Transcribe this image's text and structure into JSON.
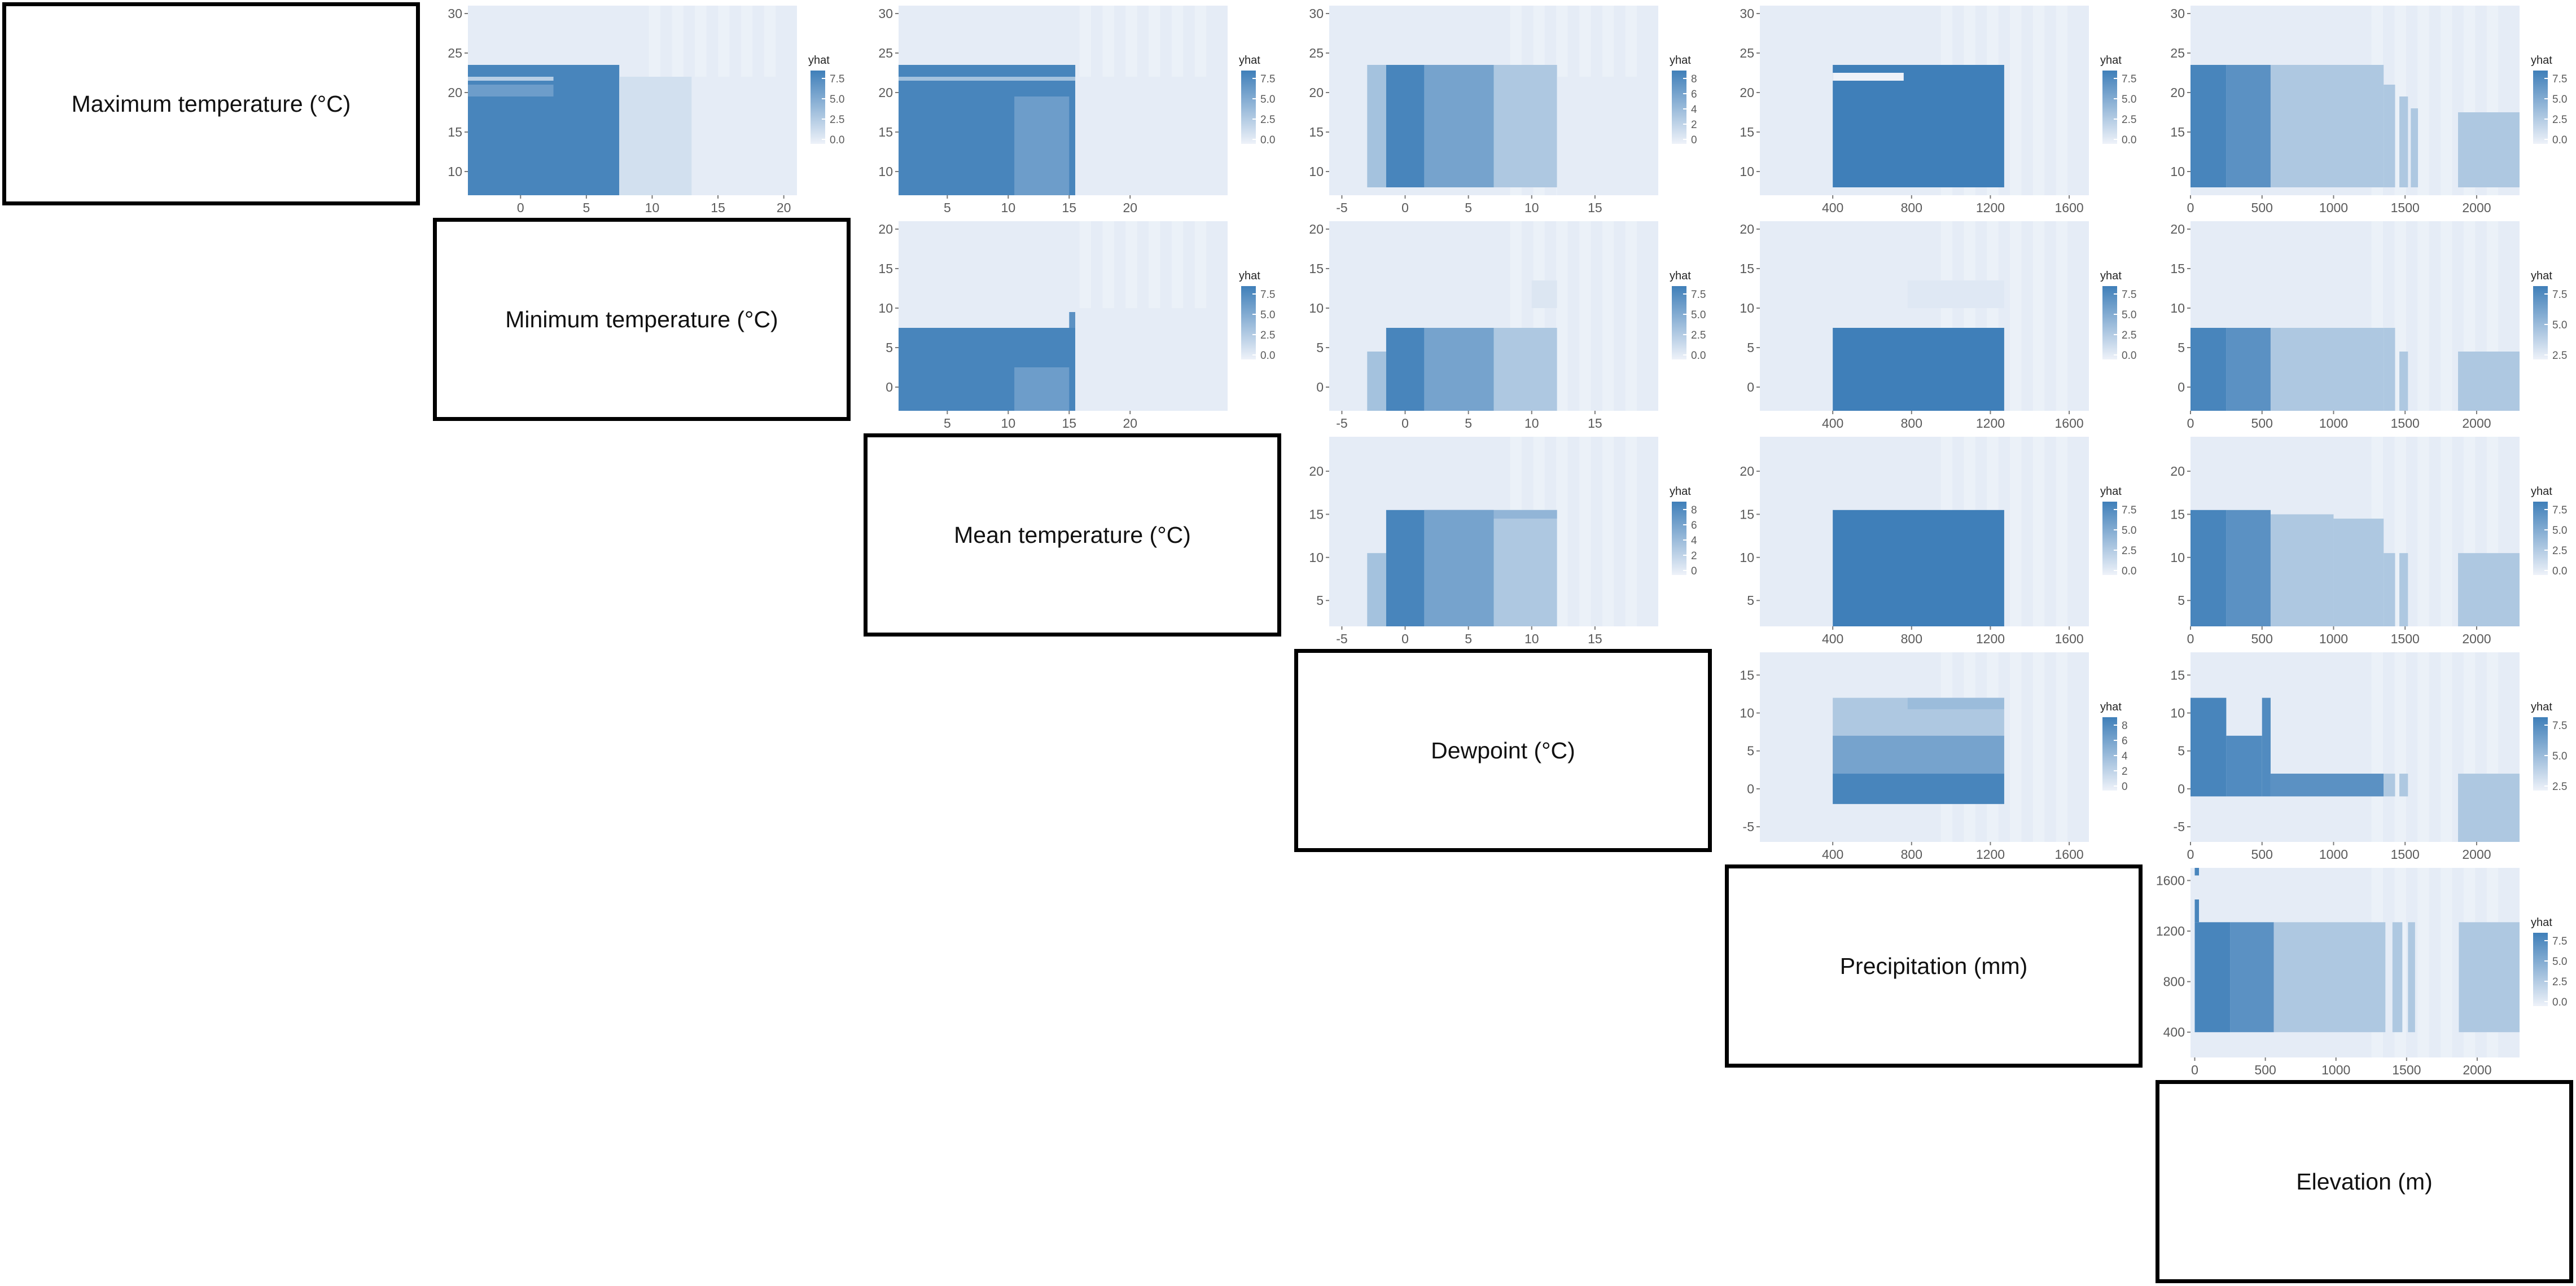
{
  "variables": [
    {
      "label": "Maximum temperature (°C)"
    },
    {
      "label": "Minimum temperature (°C)"
    },
    {
      "label": "Mean temperature (°C)"
    },
    {
      "label": "Dewpoint (°C)"
    },
    {
      "label": "Precipitation (mm)"
    },
    {
      "label": "Elevation (m)"
    }
  ],
  "colors": {
    "low": "#eef2f9",
    "high": "#3f7fb9"
  },
  "chart_data": [
    {
      "type": "heatmap",
      "row": 0,
      "col": 1,
      "legend_title": "yhat",
      "xlim": [
        -4,
        21
      ],
      "ylim": [
        7,
        31
      ],
      "xticks": [
        0,
        5,
        10,
        15,
        20
      ],
      "yticks": [
        10,
        15,
        20,
        25,
        30
      ],
      "legend_ticks": [
        "7.5",
        "5.0",
        "2.5",
        "0.0"
      ],
      "rects": [
        {
          "x": [
            -4,
            7.5
          ],
          "y": [
            7,
            23.5
          ],
          "v": 9
        },
        {
          "x": [
            -4,
            2.5
          ],
          "y": [
            19.5,
            21
          ],
          "v": 7
        },
        {
          "x": [
            -4,
            2.5
          ],
          "y": [
            21.5,
            22
          ],
          "v": 3
        },
        {
          "x": [
            7.5,
            13
          ],
          "y": [
            7,
            22
          ],
          "v": 1.5
        },
        {
          "x": [
            13,
            21
          ],
          "y": [
            7,
            22
          ],
          "v": 0.5
        }
      ]
    },
    {
      "type": "heatmap",
      "row": 0,
      "col": 2,
      "legend_title": "yhat",
      "xlim": [
        1,
        28
      ],
      "ylim": [
        7,
        31
      ],
      "xticks": [
        5,
        10,
        15,
        20
      ],
      "yticks": [
        10,
        15,
        20,
        25,
        30
      ],
      "legend_ticks": [
        "7.5",
        "5.0",
        "2.5",
        "0.0"
      ],
      "rects": [
        {
          "x": [
            1,
            15.5
          ],
          "y": [
            7,
            23.5
          ],
          "v": 9
        },
        {
          "x": [
            10.5,
            15
          ],
          "y": [
            7,
            19.5
          ],
          "v": 7
        },
        {
          "x": [
            1,
            15.5
          ],
          "y": [
            21.5,
            22
          ],
          "v": 4
        },
        {
          "x": [
            15.5,
            28
          ],
          "y": [
            7,
            22
          ],
          "v": 0.5
        }
      ]
    },
    {
      "type": "heatmap",
      "row": 0,
      "col": 3,
      "legend_title": "yhat",
      "xlim": [
        -6,
        20
      ],
      "ylim": [
        7,
        31
      ],
      "xticks": [
        -5,
        0,
        5,
        10,
        15
      ],
      "yticks": [
        10,
        15,
        20,
        25,
        30
      ],
      "legend_ticks": [
        "8",
        "6",
        "4",
        "2",
        "0"
      ],
      "rects": [
        {
          "x": [
            -3,
            -1.5
          ],
          "y": [
            8,
            23.5
          ],
          "v": 4
        },
        {
          "x": [
            -1.5,
            7
          ],
          "y": [
            8,
            23.5
          ],
          "v": 9
        },
        {
          "x": [
            1.5,
            7
          ],
          "y": [
            8,
            23.5
          ],
          "v": 6.5
        },
        {
          "x": [
            7,
            12
          ],
          "y": [
            8,
            23.5
          ],
          "v": 3.5
        },
        {
          "x": [
            12,
            20
          ],
          "y": [
            7,
            22
          ],
          "v": 0.5
        }
      ]
    },
    {
      "type": "heatmap",
      "row": 0,
      "col": 4,
      "legend_title": "yhat",
      "xlim": [
        30,
        1700
      ],
      "ylim": [
        7,
        31
      ],
      "xticks": [
        400,
        800,
        1200,
        1600
      ],
      "yticks": [
        10,
        15,
        20,
        25,
        30
      ],
      "legend_ticks": [
        "7.5",
        "5.0",
        "2.5",
        "0.0"
      ],
      "rects": [
        {
          "x": [
            400,
            1270
          ],
          "y": [
            8,
            23.5
          ],
          "v": 9.5
        },
        {
          "x": [
            400,
            760
          ],
          "y": [
            21.5,
            22.5
          ],
          "v": 0
        }
      ]
    },
    {
      "type": "heatmap",
      "row": 0,
      "col": 5,
      "legend_title": "yhat",
      "xlim": [
        0,
        2300
      ],
      "ylim": [
        7,
        31
      ],
      "xticks": [
        0,
        500,
        1000,
        1500,
        2000
      ],
      "yticks": [
        10,
        15,
        20,
        25,
        30
      ],
      "legend_ticks": [
        "7.5",
        "5.0",
        "2.5",
        "0.0"
      ],
      "rects": [
        {
          "x": [
            0,
            250
          ],
          "y": [
            8,
            23.5
          ],
          "v": 9
        },
        {
          "x": [
            250,
            560
          ],
          "y": [
            8,
            23.5
          ],
          "v": 8
        },
        {
          "x": [
            560,
            1350
          ],
          "y": [
            8,
            23.5
          ],
          "v": 3.5
        },
        {
          "x": [
            1350,
            1430
          ],
          "y": [
            8,
            21
          ],
          "v": 3.5
        },
        {
          "x": [
            1460,
            1520
          ],
          "y": [
            8,
            19.5
          ],
          "v": 3.5
        },
        {
          "x": [
            1540,
            1590
          ],
          "y": [
            8,
            18
          ],
          "v": 3.5
        },
        {
          "x": [
            1870,
            2300
          ],
          "y": [
            8,
            17.5
          ],
          "v": 3.5
        }
      ]
    },
    {
      "type": "heatmap",
      "row": 1,
      "col": 2,
      "legend_title": "yhat",
      "xlim": [
        1,
        28
      ],
      "ylim": [
        -3,
        21
      ],
      "xticks": [
        5,
        10,
        15,
        20
      ],
      "yticks": [
        0,
        5,
        10,
        15,
        20
      ],
      "legend_ticks": [
        "7.5",
        "5.0",
        "2.5",
        "0.0"
      ],
      "rects": [
        {
          "x": [
            1,
            15.5
          ],
          "y": [
            -3,
            7.5
          ],
          "v": 9
        },
        {
          "x": [
            10.5,
            15
          ],
          "y": [
            -3,
            2.5
          ],
          "v": 7
        },
        {
          "x": [
            15,
            15.5
          ],
          "y": [
            7.5,
            9.5
          ],
          "v": 8
        },
        {
          "x": [
            15.5,
            28
          ],
          "y": [
            -3,
            10
          ],
          "v": 0.5
        }
      ]
    },
    {
      "type": "heatmap",
      "row": 1,
      "col": 3,
      "legend_title": "yhat",
      "xlim": [
        -6,
        20
      ],
      "ylim": [
        -3,
        21
      ],
      "xticks": [
        -5,
        0,
        5,
        10,
        15
      ],
      "yticks": [
        0,
        5,
        10,
        15,
        20
      ],
      "legend_ticks": [
        "7.5",
        "5.0",
        "2.5",
        "0.0"
      ],
      "rects": [
        {
          "x": [
            -3,
            -1.5
          ],
          "y": [
            -3,
            4.5
          ],
          "v": 4
        },
        {
          "x": [
            -1.5,
            7
          ],
          "y": [
            -3,
            7.5
          ],
          "v": 9
        },
        {
          "x": [
            1.5,
            7
          ],
          "y": [
            -3,
            7.5
          ],
          "v": 6.5
        },
        {
          "x": [
            7,
            12
          ],
          "y": [
            -3,
            7.5
          ],
          "v": 3.5
        },
        {
          "x": [
            10,
            12
          ],
          "y": [
            10,
            13.5
          ],
          "v": 1
        }
      ]
    },
    {
      "type": "heatmap",
      "row": 1,
      "col": 4,
      "legend_title": "yhat",
      "xlim": [
        30,
        1700
      ],
      "ylim": [
        -3,
        21
      ],
      "xticks": [
        400,
        800,
        1200,
        1600
      ],
      "yticks": [
        0,
        5,
        10,
        15,
        20
      ],
      "legend_ticks": [
        "7.5",
        "5.0",
        "2.5",
        "0.0"
      ],
      "rects": [
        {
          "x": [
            400,
            1270
          ],
          "y": [
            -3,
            7.5
          ],
          "v": 9.5
        },
        {
          "x": [
            780,
            1270
          ],
          "y": [
            10,
            13.5
          ],
          "v": 0.8
        }
      ]
    },
    {
      "type": "heatmap",
      "row": 1,
      "col": 5,
      "legend_title": "yhat",
      "xlim": [
        0,
        2300
      ],
      "ylim": [
        -3,
        21
      ],
      "xticks": [
        0,
        500,
        1000,
        1500,
        2000
      ],
      "yticks": [
        0,
        5,
        10,
        15,
        20
      ],
      "legend_ticks": [
        "7.5",
        "5.0",
        "2.5"
      ],
      "rects": [
        {
          "x": [
            0,
            250
          ],
          "y": [
            -3,
            7.5
          ],
          "v": 9
        },
        {
          "x": [
            250,
            560
          ],
          "y": [
            -3,
            7.5
          ],
          "v": 8
        },
        {
          "x": [
            560,
            1350
          ],
          "y": [
            -3,
            7.5
          ],
          "v": 3.5
        },
        {
          "x": [
            1350,
            1430
          ],
          "y": [
            -3,
            7.5
          ],
          "v": 3.5
        },
        {
          "x": [
            1460,
            1520
          ],
          "y": [
            -3,
            4.5
          ],
          "v": 3.5
        },
        {
          "x": [
            1870,
            2300
          ],
          "y": [
            -3,
            4.5
          ],
          "v": 3.5
        }
      ]
    },
    {
      "type": "heatmap",
      "row": 2,
      "col": 3,
      "legend_title": "yhat",
      "xlim": [
        -6,
        20
      ],
      "ylim": [
        2,
        24
      ],
      "xticks": [
        -5,
        0,
        5,
        10,
        15
      ],
      "yticks": [
        5,
        10,
        15,
        20
      ],
      "legend_ticks": [
        "8",
        "6",
        "4",
        "2",
        "0"
      ],
      "rects": [
        {
          "x": [
            -3,
            -1.5
          ],
          "y": [
            2,
            10.5
          ],
          "v": 4
        },
        {
          "x": [
            -1.5,
            7
          ],
          "y": [
            2,
            15.5
          ],
          "v": 9
        },
        {
          "x": [
            1.5,
            7
          ],
          "y": [
            2,
            15.5
          ],
          "v": 6.5
        },
        {
          "x": [
            7,
            12
          ],
          "y": [
            2,
            15.5
          ],
          "v": 3.5
        },
        {
          "x": [
            7,
            12
          ],
          "y": [
            14.5,
            15.5
          ],
          "v": 5
        }
      ]
    },
    {
      "type": "heatmap",
      "row": 2,
      "col": 4,
      "legend_title": "yhat",
      "xlim": [
        30,
        1700
      ],
      "ylim": [
        2,
        24
      ],
      "xticks": [
        400,
        800,
        1200,
        1600
      ],
      "yticks": [
        5,
        10,
        15,
        20
      ],
      "legend_ticks": [
        "7.5",
        "5.0",
        "2.5",
        "0.0"
      ],
      "rects": [
        {
          "x": [
            400,
            1270
          ],
          "y": [
            2,
            15.5
          ],
          "v": 9.5
        }
      ]
    },
    {
      "type": "heatmap",
      "row": 2,
      "col": 5,
      "legend_title": "yhat",
      "xlim": [
        0,
        2300
      ],
      "ylim": [
        2,
        24
      ],
      "xticks": [
        0,
        500,
        1000,
        1500,
        2000
      ],
      "yticks": [
        5,
        10,
        15,
        20
      ],
      "legend_ticks": [
        "7.5",
        "5.0",
        "2.5",
        "0.0"
      ],
      "rects": [
        {
          "x": [
            0,
            250
          ],
          "y": [
            2,
            15.5
          ],
          "v": 9
        },
        {
          "x": [
            250,
            560
          ],
          "y": [
            2,
            15.5
          ],
          "v": 8
        },
        {
          "x": [
            560,
            1000
          ],
          "y": [
            2,
            15
          ],
          "v": 3.5
        },
        {
          "x": [
            1000,
            1350
          ],
          "y": [
            2,
            14.5
          ],
          "v": 3.5
        },
        {
          "x": [
            1350,
            1430
          ],
          "y": [
            2,
            10.5
          ],
          "v": 3.5
        },
        {
          "x": [
            1460,
            1520
          ],
          "y": [
            2,
            10.5
          ],
          "v": 3.5
        },
        {
          "x": [
            1870,
            2300
          ],
          "y": [
            2,
            10.5
          ],
          "v": 3.5
        }
      ]
    },
    {
      "type": "heatmap",
      "row": 3,
      "col": 4,
      "legend_title": "yhat",
      "xlim": [
        30,
        1700
      ],
      "ylim": [
        -7,
        18
      ],
      "xticks": [
        400,
        800,
        1200,
        1600
      ],
      "yticks": [
        -5,
        0,
        5,
        10,
        15
      ],
      "legend_ticks": [
        "8",
        "6",
        "4",
        "2",
        "0"
      ],
      "rects": [
        {
          "x": [
            400,
            1270
          ],
          "y": [
            -2,
            12
          ],
          "v": 3.5
        },
        {
          "x": [
            400,
            1270
          ],
          "y": [
            2,
            7
          ],
          "v": 6.5
        },
        {
          "x": [
            400,
            1270
          ],
          "y": [
            -2,
            2
          ],
          "v": 9
        },
        {
          "x": [
            780,
            1270
          ],
          "y": [
            10.5,
            12
          ],
          "v": 4.5
        }
      ]
    },
    {
      "type": "heatmap",
      "row": 3,
      "col": 5,
      "legend_title": "yhat",
      "xlim": [
        0,
        2300
      ],
      "ylim": [
        -7,
        18
      ],
      "xticks": [
        0,
        500,
        1000,
        1500,
        2000
      ],
      "yticks": [
        -5,
        0,
        5,
        10,
        15
      ],
      "legend_ticks": [
        "7.5",
        "5.0",
        "2.5"
      ],
      "rects": [
        {
          "x": [
            0,
            250
          ],
          "y": [
            -1,
            12
          ],
          "v": 9
        },
        {
          "x": [
            250,
            500
          ],
          "y": [
            -1,
            7
          ],
          "v": 8.5
        },
        {
          "x": [
            500,
            560
          ],
          "y": [
            -1,
            12
          ],
          "v": 8.5
        },
        {
          "x": [
            560,
            1350
          ],
          "y": [
            -1,
            2
          ],
          "v": 8
        },
        {
          "x": [
            1350,
            1430
          ],
          "y": [
            -1,
            2
          ],
          "v": 3.5
        },
        {
          "x": [
            1460,
            1520
          ],
          "y": [
            -1,
            2
          ],
          "v": 3.5
        },
        {
          "x": [
            1870,
            2300
          ],
          "y": [
            -7,
            2
          ],
          "v": 3.5
        }
      ]
    },
    {
      "type": "heatmap",
      "row": 4,
      "col": 5,
      "legend_title": "yhat",
      "xlim": [
        -30,
        2300
      ],
      "ylim": [
        200,
        1700
      ],
      "xticks": [
        0,
        500,
        1000,
        1500,
        2000
      ],
      "yticks": [
        400,
        800,
        1200,
        1600
      ],
      "legend_ticks": [
        "7.5",
        "5.0",
        "2.5",
        "0.0"
      ],
      "rects": [
        {
          "x": [
            0,
            250
          ],
          "y": [
            400,
            1270
          ],
          "v": 9
        },
        {
          "x": [
            250,
            560
          ],
          "y": [
            400,
            1270
          ],
          "v": 8
        },
        {
          "x": [
            560,
            1350
          ],
          "y": [
            400,
            1270
          ],
          "v": 3.5
        },
        {
          "x": [
            1400,
            1470
          ],
          "y": [
            400,
            1270
          ],
          "v": 3.5
        },
        {
          "x": [
            1510,
            1560
          ],
          "y": [
            400,
            1270
          ],
          "v": 3.5
        },
        {
          "x": [
            1870,
            2300
          ],
          "y": [
            400,
            1270
          ],
          "v": 3.5
        },
        {
          "x": [
            0,
            30
          ],
          "y": [
            1270,
            1450
          ],
          "v": 9
        },
        {
          "x": [
            0,
            30
          ],
          "y": [
            1640,
            1700
          ],
          "v": 9
        }
      ]
    }
  ]
}
